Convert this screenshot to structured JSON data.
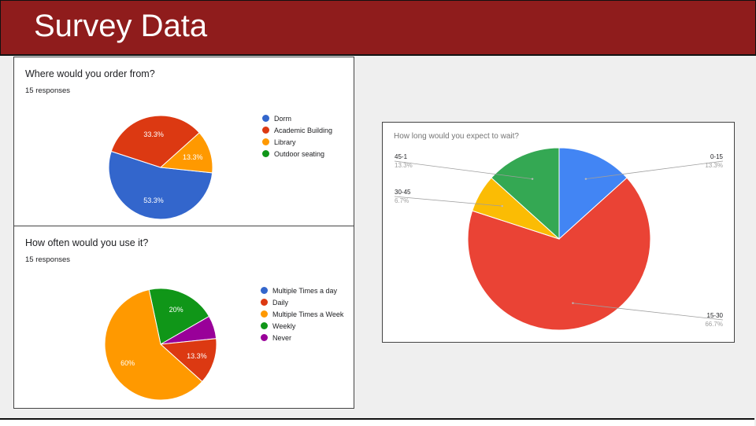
{
  "slide": {
    "title": "Survey Data"
  },
  "chart_data": [
    {
      "type": "pie",
      "title": "Where would you order from?",
      "subtitle": "15 responses",
      "series": [
        {
          "name": "Dorm",
          "value": 53.3,
          "label": "53.3%",
          "color": "#3366cc"
        },
        {
          "name": "Academic Building",
          "value": 33.3,
          "label": "33.3%",
          "color": "#dc3912"
        },
        {
          "name": "Library",
          "value": 13.3,
          "label": "13.3%",
          "color": "#ff9900"
        },
        {
          "name": "Outdoor seating",
          "value": 0,
          "label": "",
          "color": "#109618"
        }
      ],
      "legend": "right"
    },
    {
      "type": "pie",
      "title": "How often would you use it?",
      "subtitle": "15 responses",
      "series": [
        {
          "name": "Multiple Times a day",
          "value": 0,
          "label": "",
          "color": "#3366cc"
        },
        {
          "name": "Daily",
          "value": 13.3,
          "label": "13.3%",
          "color": "#dc3912"
        },
        {
          "name": "Multiple Times a Week",
          "value": 60,
          "label": "60%",
          "color": "#ff9900"
        },
        {
          "name": "Weekly",
          "value": 20,
          "label": "20%",
          "color": "#109618"
        },
        {
          "name": "Never",
          "value": 6.7,
          "label": "",
          "color": "#990099"
        }
      ],
      "legend": "right"
    },
    {
      "type": "pie",
      "title": "How long would you expect to wait?",
      "series": [
        {
          "name": "0-15",
          "value": 13.3,
          "label": "13.3%",
          "color": "#4285f4"
        },
        {
          "name": "15-30",
          "value": 66.7,
          "label": "66.7%",
          "color": "#ea4335"
        },
        {
          "name": "30-45",
          "value": 6.7,
          "label": "6.7%",
          "color": "#fbbc04"
        },
        {
          "name": "45-1",
          "value": 13.3,
          "label": "13.3%",
          "color": "#34a853"
        }
      ],
      "legend": "callout labels"
    }
  ]
}
